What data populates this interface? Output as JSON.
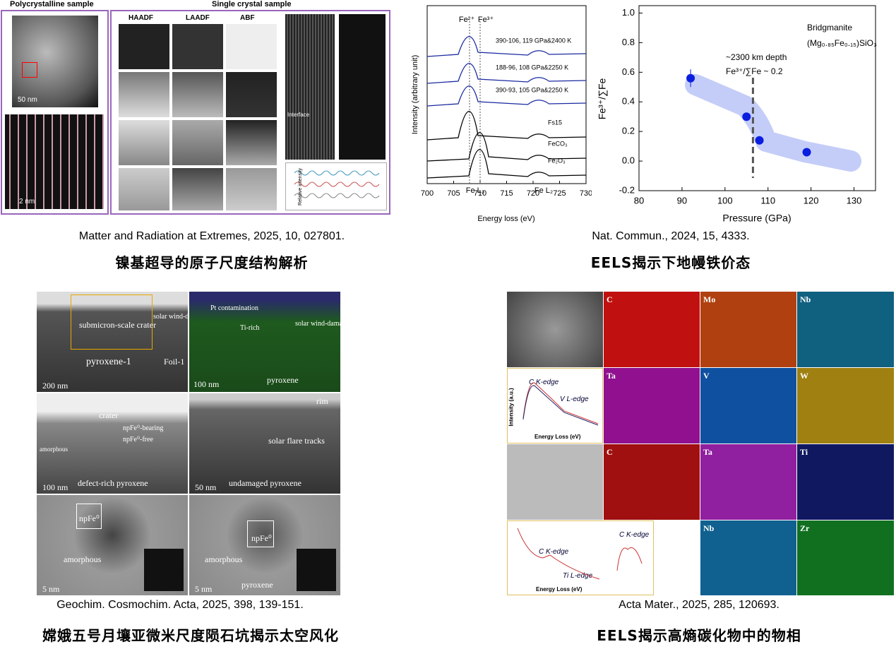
{
  "panels": [
    {
      "labels": {
        "poly": "Polycrystalline sample",
        "single": "Single crystal sample",
        "columns": [
          "HAADF",
          "LAADF",
          "ABF"
        ],
        "scale_a": "50 nm",
        "scale_b": "2 nm",
        "interface": "Interface",
        "axis": "Relative intensity"
      },
      "citation": "Matter and Radiation at Extremes, 2025, 10, 027801.",
      "caption": "镍基超导的原子尺度结构解析"
    },
    {
      "spectra": {
        "xlim": [
          700,
          730
        ],
        "xticks": [
          700,
          705,
          710,
          715,
          720,
          725,
          730
        ],
        "xlabel": "Energy loss (eV)",
        "ylabel": "Intensity (arbitrary unit)",
        "names": [
          "390-106, 119 GPa&2400 K",
          "188-96, 108 GPa&2250 K",
          "390-93, 105 GPa&2250 K",
          "Fs15",
          "FeCO₃",
          "Fe₂O₃"
        ],
        "peaks": [
          "Fe²⁺",
          "Fe³⁺",
          "Fe L₃",
          "Fe L₂"
        ]
      },
      "chart": {
        "type": "scatter",
        "xlabel": "Pressure (GPa)",
        "ylabel": "Fe³⁺/∑Fe",
        "xlim": [
          80,
          135
        ],
        "ylim": [
          -0.2,
          1.05
        ],
        "xticks": [
          80,
          90,
          100,
          110,
          120,
          130
        ],
        "yticks": [
          -0.2,
          {
            "value": 0,
            "label": "0.0"
          },
          0.2,
          0.4,
          0.6,
          0.8,
          {
            "value": 1,
            "label": "1.0"
          }
        ],
        "x": [
          92,
          105,
          108,
          119
        ],
        "values": [
          0.56,
          0.3,
          0.14,
          0.06
        ],
        "errors": [
          0.06,
          null,
          null,
          null
        ],
        "color": "#0a1ee0",
        "boundary_x": 106.5,
        "annotations": [
          "Bridgmanite",
          "(Mg₀.₈₅Fe₀.₁₅)SiO₃",
          "~2300 km depth",
          "Fe³⁺/∑Fe ~ 0.2"
        ]
      },
      "citation": "Nat. Commun., 2024, 15, 4333.",
      "caption": "EELS揭示下地幔铁价态"
    },
    {
      "labels": [
        "submicron-scale crater",
        "solar wind-damaged rim",
        "pyroxene-1",
        "200 nm",
        "Foil-1",
        "Pt contamination",
        "Ti-rich",
        "solar wind-damaged rim",
        "pyroxene",
        "100 nm",
        "crater",
        "npFe⁰-bearing",
        "npFe⁰-free",
        "amorphous",
        "defect-rich pyroxene",
        "100 nm",
        "rim",
        "solar flare tracks",
        "undamaged pyroxene",
        "50 nm",
        "npFe⁰",
        "amorphous",
        "5 nm",
        "npFe⁰",
        "amorphous",
        "pyroxene",
        "5 nm"
      ],
      "citation": "Geochim. Cosmochim. Acta, 2025, 398, 139-151.",
      "caption": "嫦娥五号月壤亚微米尺度陨石坑揭示太空风化"
    },
    {
      "labels": [
        "C",
        "Mo",
        "Nb",
        "Ta",
        "V",
        "W",
        "C",
        "Ta",
        "Ti",
        "Nb",
        "Zr",
        "C K-edge",
        "V L-edge",
        "Energy Loss (eV)",
        "Intensity (a.u.)",
        "C K-edge",
        "Ti L-edge",
        "Energy Loss (eV)",
        "C K-edge"
      ],
      "citation": "Acta Mater., 2025, 285, 120693.",
      "caption": "EELS揭示高熵碳化物中的物相"
    }
  ]
}
